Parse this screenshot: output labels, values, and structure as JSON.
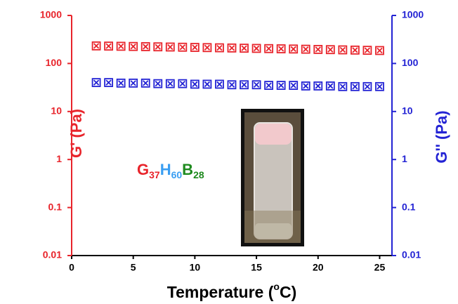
{
  "chart_data": {
    "type": "scatter",
    "y_scale": "log",
    "y2_scale": "log",
    "ylabel": "G' (Pa)",
    "y2label": "G'' (Pa)",
    "ylabel_color": "#e8242b",
    "y2label_color": "#2323d4",
    "xlabel_parts": [
      "Temperature (",
      "o",
      "C)"
    ],
    "annotation": [
      {
        "text": "G",
        "sub": "37",
        "color": "#e8242b"
      },
      {
        "text": "H",
        "sub": "60",
        "color": "#3a9ef2"
      },
      {
        "text": "B",
        "sub": "28",
        "color": "#1e8a1e"
      }
    ],
    "xlim": [
      0,
      26
    ],
    "xticks": [
      0,
      5,
      10,
      15,
      20,
      25
    ],
    "ylim": [
      0.01,
      1000
    ],
    "yticks": [
      1000,
      100,
      10,
      1,
      0.1,
      0.01
    ],
    "y2lim": [
      0.01,
      1000
    ],
    "y2ticks": [
      1000,
      100,
      10,
      1,
      0.1,
      0.01
    ],
    "x": [
      2,
      3,
      4,
      5,
      6,
      7,
      8,
      9,
      10,
      11,
      12,
      13,
      14,
      15,
      16,
      17,
      18,
      19,
      20,
      21,
      22,
      23,
      24,
      25
    ],
    "series": [
      {
        "name": "G'",
        "color": "#e8242b",
        "axis": "y",
        "values": [
          232,
          230,
          228,
          226,
          224,
          222,
          220,
          218,
          216,
          214,
          212,
          210,
          208,
          206,
          204,
          202,
          200,
          198,
          196,
          194,
          192,
          190,
          188,
          186
        ]
      },
      {
        "name": "G''",
        "color": "#2323d4",
        "axis": "y2",
        "values": [
          40,
          40,
          39,
          39,
          39,
          38,
          38,
          38,
          37,
          37,
          37,
          36,
          36,
          36,
          35,
          35,
          35,
          34,
          34,
          34,
          33,
          33,
          33,
          33
        ]
      }
    ]
  }
}
